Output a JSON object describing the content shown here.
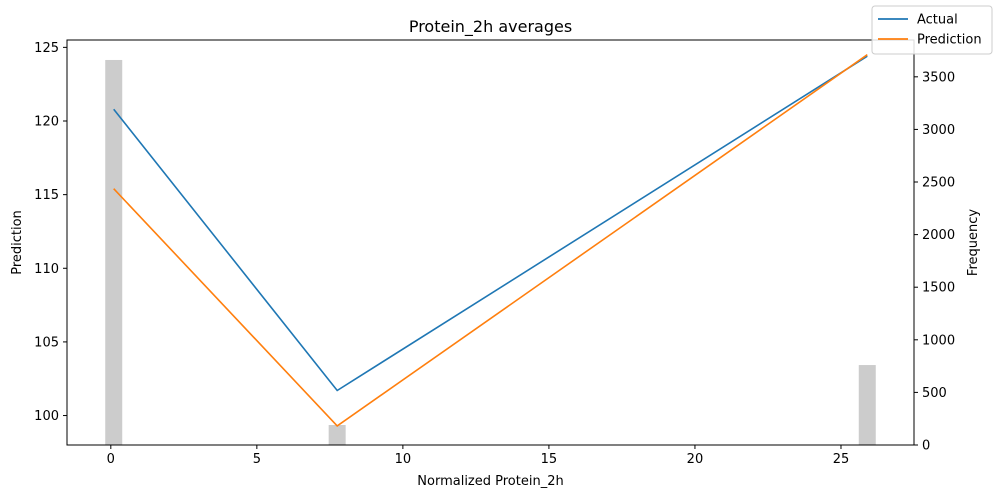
{
  "chart_data": {
    "type": "line",
    "title": "Protein_2h averages",
    "xlabel": "Normalized Protein_2h",
    "ylabel": "Prediction",
    "y2label": "Frequency",
    "xlim": [
      -1.5,
      27.5
    ],
    "ylim": [
      98,
      125.5
    ],
    "y2lim": [
      0,
      3850
    ],
    "x_ticks": [
      0,
      5,
      10,
      15,
      20,
      25
    ],
    "y_ticks": [
      100,
      105,
      110,
      115,
      120,
      125
    ],
    "y2_ticks": [
      0,
      500,
      1000,
      1500,
      2000,
      2500,
      3000,
      3500
    ],
    "grid": false,
    "legend_position": "top-right",
    "series": [
      {
        "name": "Actual",
        "color": "#1f77b4",
        "x": [
          0.1,
          7.75,
          25.9
        ],
        "y": [
          120.8,
          101.7,
          124.4
        ]
      },
      {
        "name": "Prediction",
        "color": "#ff7f0e",
        "x": [
          0.1,
          7.75,
          25.9
        ],
        "y": [
          115.4,
          99.3,
          124.5
        ]
      }
    ],
    "histogram": {
      "color": "#cccccc",
      "x": [
        0.1,
        7.75,
        25.9
      ],
      "frequency": [
        3660,
        190,
        760
      ]
    }
  }
}
